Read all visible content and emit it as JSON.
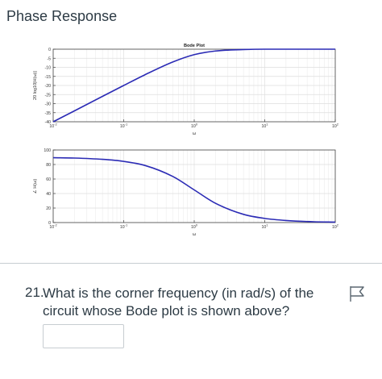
{
  "page": {
    "title": "Phase Response"
  },
  "question": {
    "number": "21.",
    "text": "What is the corner frequency (in rad/s) of the circuit whose Bode plot is shown above?",
    "answer_value": "",
    "flag_icon": "flag-icon"
  },
  "chart_data": [
    {
      "type": "line",
      "title": "Bode Plot",
      "xlabel": "ω",
      "ylabel": "20 log10|H(ω)|",
      "xscale": "log",
      "xlim": [
        0.01,
        100
      ],
      "ylim": [
        -40,
        0
      ],
      "xticks": [
        0.01,
        0.1,
        1,
        10,
        100
      ],
      "xtick_labels": [
        "10-2",
        "10-1",
        "100",
        "101",
        "102"
      ],
      "yticks": [
        0,
        -5,
        -10,
        -15,
        -20,
        -25,
        -30,
        -35,
        -40
      ],
      "ytick_labels": [
        "0",
        "-5",
        "-10",
        "-15",
        "-20",
        "-25",
        "-30",
        "-35",
        "-40"
      ],
      "grid": true,
      "series": [
        {
          "color": "#2b2bb5",
          "x": [
            0.01,
            0.02,
            0.05,
            0.1,
            0.2,
            0.5,
            1,
            2,
            5,
            10,
            100
          ],
          "y": [
            -40,
            -34,
            -26,
            -20,
            -14.1,
            -7.0,
            -3.0,
            -1.0,
            -0.2,
            0,
            0
          ]
        }
      ]
    },
    {
      "type": "line",
      "title": "",
      "xlabel": "ω",
      "ylabel": "∠ H(ω)",
      "xscale": "log",
      "xlim": [
        0.01,
        100
      ],
      "ylim": [
        0,
        100
      ],
      "xticks": [
        0.01,
        0.1,
        1,
        10,
        100
      ],
      "xtick_labels": [
        "10-2",
        "10-1",
        "100",
        "101",
        "102"
      ],
      "yticks": [
        0,
        20,
        40,
        60,
        80,
        100
      ],
      "ytick_labels": [
        "0",
        "20",
        "40",
        "60",
        "80",
        "100"
      ],
      "grid": true,
      "series": [
        {
          "color": "#2b2bb5",
          "x": [
            0.01,
            0.02,
            0.05,
            0.1,
            0.2,
            0.5,
            1,
            2,
            5,
            10,
            20,
            50,
            100
          ],
          "y": [
            89.4,
            88.9,
            87.1,
            84.3,
            78.7,
            63.4,
            45,
            26.6,
            11.3,
            5.7,
            2.9,
            1.1,
            0.6
          ]
        }
      ]
    }
  ]
}
